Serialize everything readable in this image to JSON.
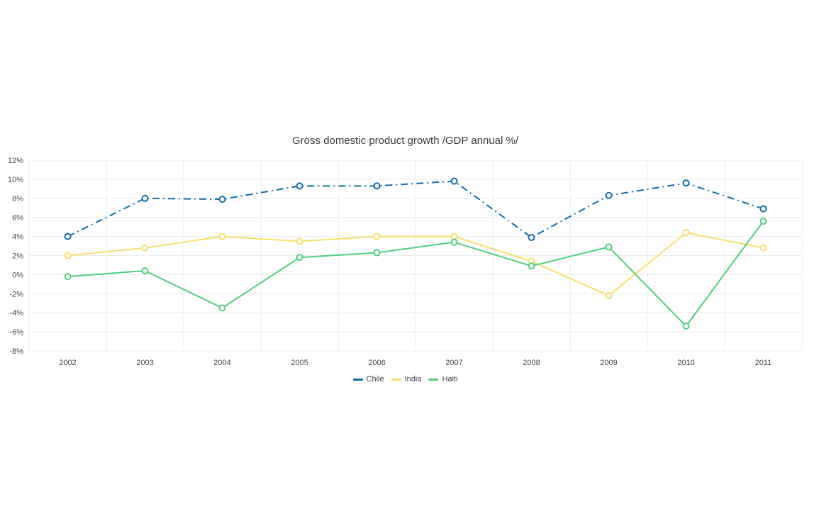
{
  "chart_data": {
    "type": "line",
    "title": "Gross domestic product growth /GDP annual %/",
    "categories": [
      "2002",
      "2003",
      "2004",
      "2005",
      "2006",
      "2007",
      "2008",
      "2009",
      "2010",
      "2011"
    ],
    "ylim": [
      -8,
      12
    ],
    "yticks": [
      12,
      10,
      8,
      6,
      4,
      2,
      0,
      -2,
      -4,
      -6,
      -8
    ],
    "ytick_labels": [
      "12%",
      "10%",
      "8%",
      "6%",
      "4%",
      "2%",
      "0%",
      "-2%",
      "-4%",
      "-6%",
      "-8%"
    ],
    "grid": true,
    "legend_position": "bottom-center",
    "series": [
      {
        "name": "Chile",
        "color": "#0f6fa6",
        "dash": "dash-dot",
        "values": [
          4.0,
          8.0,
          7.9,
          9.3,
          9.3,
          9.8,
          3.9,
          8.3,
          9.6,
          6.9
        ]
      },
      {
        "name": "India",
        "color": "#f7df6b",
        "dash": "solid",
        "values": [
          2.0,
          2.8,
          4.0,
          3.5,
          4.0,
          4.0,
          1.4,
          -2.2,
          4.4,
          2.8
        ]
      },
      {
        "name": "Haiti",
        "color": "#4fcf7f",
        "dash": "solid",
        "values": [
          -0.2,
          0.4,
          -3.5,
          1.8,
          2.3,
          3.4,
          0.9,
          2.9,
          -5.4,
          5.6
        ]
      }
    ]
  }
}
